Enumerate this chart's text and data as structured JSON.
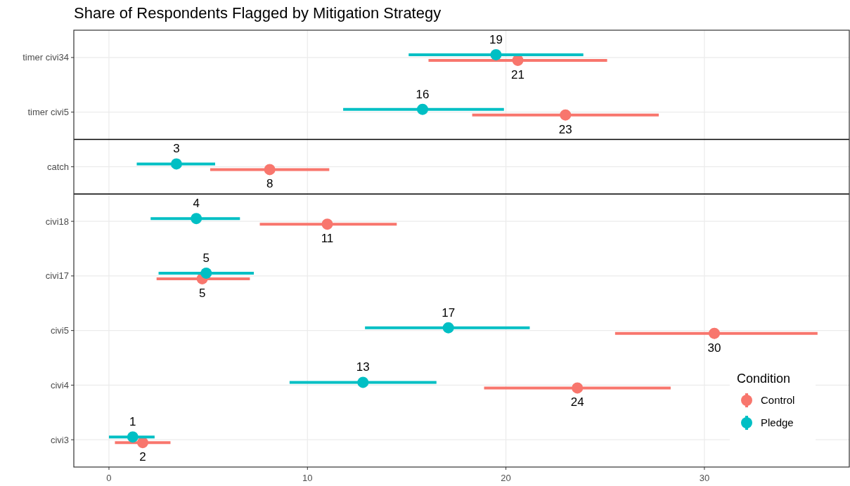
{
  "chart_data": {
    "type": "scatter",
    "title": "Share of Respondents Flagged by Mitigation Strategy",
    "orientation": "horizontal",
    "categories": [
      "timer civi34",
      "timer civi5",
      "catch",
      "civi18",
      "civi17",
      "civi5",
      "civi4",
      "civi3"
    ],
    "series": [
      {
        "name": "Control",
        "color": "#f8766d",
        "values": [
          20.6,
          23.0,
          8.1,
          11.0,
          4.7,
          30.5,
          23.6,
          1.7
        ],
        "errors": [
          [
            16.1,
            25.1
          ],
          [
            18.3,
            27.7
          ],
          [
            5.1,
            11.1
          ],
          [
            7.6,
            14.5
          ],
          [
            2.4,
            7.1
          ],
          [
            25.5,
            35.7
          ],
          [
            18.9,
            28.3
          ],
          [
            0.3,
            3.1
          ]
        ],
        "value_labels": [
          "21",
          "23",
          "8",
          "11",
          "5",
          "30",
          "24",
          "2"
        ]
      },
      {
        "name": "Pledge",
        "color": "#00bfc4",
        "values": [
          19.5,
          15.8,
          3.4,
          4.4,
          4.9,
          17.1,
          12.8,
          1.2
        ],
        "errors": [
          [
            15.1,
            23.9
          ],
          [
            11.8,
            19.9
          ],
          [
            1.4,
            5.35
          ],
          [
            2.1,
            6.6
          ],
          [
            2.5,
            7.3
          ],
          [
            12.9,
            21.2
          ],
          [
            9.1,
            16.5
          ],
          [
            0.0,
            2.3
          ]
        ],
        "value_labels": [
          "19",
          "16",
          "3",
          "4",
          "5",
          "17",
          "13",
          "1"
        ]
      }
    ],
    "xlim": [
      -1.77,
      37.3
    ],
    "xticks": [
      0,
      10,
      20,
      30
    ],
    "grid": true,
    "legend": "bottom right",
    "legend_title": "Condition",
    "marker": "circle"
  }
}
